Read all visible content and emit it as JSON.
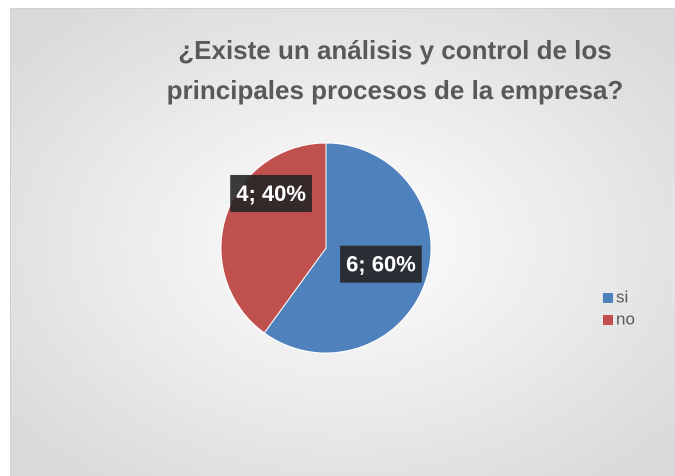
{
  "chart_data": {
    "type": "pie",
    "title": "¿Existe un análisis y control de los principales procesos de la empresa?",
    "categories": [
      "si",
      "no"
    ],
    "values": [
      6,
      4
    ],
    "value_labels": [
      "6; 60%",
      "4; 40%"
    ],
    "colors": [
      "#4f81bd",
      "#c0504d"
    ],
    "legend": "right"
  }
}
